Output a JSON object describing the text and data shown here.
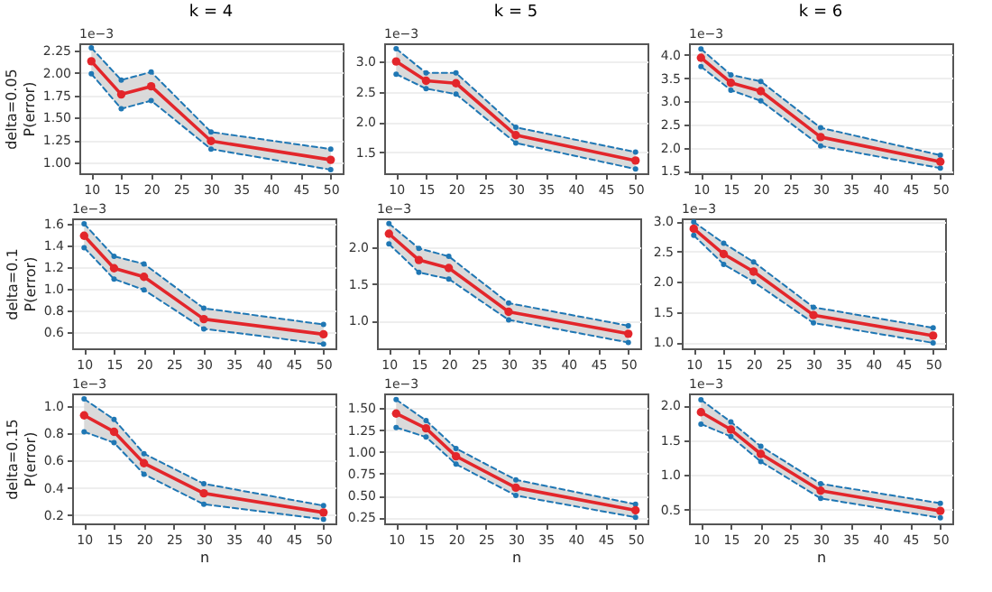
{
  "chart_data": [
    {
      "type": "line",
      "title": "k = 4",
      "ylabel": "delta=0.05\nP(error)",
      "x": [
        10,
        15,
        20,
        30,
        50
      ],
      "xlim": [
        8,
        52
      ],
      "xticks": [
        10,
        15,
        20,
        25,
        30,
        35,
        40,
        45,
        50
      ],
      "ylim": [
        0.88,
        2.33
      ],
      "yticks": [
        {
          "value": 1,
          "label": "1.00"
        },
        1.25,
        {
          "value": 1.5,
          "label": "1.50"
        },
        1.75,
        {
          "value": 2,
          "label": "2.00"
        },
        2.25
      ],
      "grid": "y",
      "marker": "circle",
      "line_style": "solid",
      "annotations": [
        "1e−3"
      ],
      "series": [
        {
          "color": "#e3262b",
          "values": [
            2.13,
            1.76,
            1.85,
            1.24,
            1.03
          ],
          "lower": [
            1.99,
            1.6,
            1.69,
            1.15,
            0.92
          ],
          "upper": [
            2.28,
            1.92,
            2.01,
            1.34,
            1.15
          ]
        },
        {
          "color": "#1f77b4",
          "line_style": "dashed",
          "values": [
            1.99,
            1.6,
            1.69,
            1.15,
            0.92
          ]
        },
        {
          "color": "#1f77b4",
          "line_style": "dashed",
          "values": [
            2.28,
            1.92,
            2.01,
            1.34,
            1.15
          ]
        }
      ]
    },
    {
      "type": "line",
      "title": "k = 5",
      "x": [
        10,
        15,
        20,
        30,
        50
      ],
      "xlim": [
        8,
        52
      ],
      "xticks": [
        10,
        15,
        20,
        25,
        30,
        35,
        40,
        45,
        50
      ],
      "ylim": [
        1.15,
        3.3
      ],
      "yticks": [
        1.5,
        {
          "value": 2,
          "label": "2.0"
        },
        2.5,
        {
          "value": 3,
          "label": "3.0"
        }
      ],
      "grid": "y",
      "marker": "circle",
      "line_style": "solid",
      "annotations": [
        "1e−3"
      ],
      "series": [
        {
          "color": "#e3262b",
          "values": [
            3.0,
            2.68,
            2.64,
            1.78,
            1.36
          ],
          "lower": [
            2.79,
            2.55,
            2.46,
            1.65,
            1.22
          ],
          "upper": [
            3.21,
            2.81,
            2.81,
            1.91,
            1.5
          ]
        },
        {
          "color": "#1f77b4",
          "line_style": "dashed",
          "values": [
            2.79,
            2.55,
            2.46,
            1.65,
            1.22
          ]
        },
        {
          "color": "#1f77b4",
          "line_style": "dashed",
          "values": [
            3.21,
            2.81,
            2.81,
            1.91,
            1.5
          ]
        }
      ]
    },
    {
      "type": "line",
      "title": "k = 6",
      "x": [
        10,
        15,
        20,
        30,
        50
      ],
      "xlim": [
        8,
        52
      ],
      "xticks": [
        10,
        15,
        20,
        25,
        30,
        35,
        40,
        45,
        50
      ],
      "ylim": [
        1.45,
        4.25
      ],
      "yticks": [
        1.5,
        {
          "value": 2,
          "label": "2.0"
        },
        2.5,
        {
          "value": 3,
          "label": "3.0"
        },
        3.5,
        {
          "value": 4,
          "label": "4.0"
        }
      ],
      "grid": "y",
      "marker": "circle",
      "line_style": "solid",
      "annotations": [
        "1e−3"
      ],
      "series": [
        {
          "color": "#e3262b",
          "values": [
            3.94,
            3.4,
            3.22,
            2.23,
            1.7
          ],
          "lower": [
            3.75,
            3.24,
            3.01,
            2.04,
            1.56
          ],
          "upper": [
            4.13,
            3.57,
            3.43,
            2.43,
            1.84
          ]
        },
        {
          "color": "#1f77b4",
          "line_style": "dashed",
          "values": [
            3.75,
            3.24,
            3.01,
            2.04,
            1.56
          ]
        },
        {
          "color": "#1f77b4",
          "line_style": "dashed",
          "values": [
            4.13,
            3.57,
            3.43,
            2.43,
            1.84
          ]
        }
      ]
    },
    {
      "type": "line",
      "ylabel": "delta=0.1\nP(error)",
      "x": [
        10,
        15,
        20,
        30,
        50
      ],
      "xlim": [
        8,
        52
      ],
      "xticks": [
        10,
        15,
        20,
        25,
        30,
        35,
        40,
        45,
        50
      ],
      "ylim": [
        0.45,
        1.65
      ],
      "yticks": [
        0.6,
        0.8,
        {
          "value": 1,
          "label": "1.0"
        },
        1.2,
        1.4,
        1.6
      ],
      "grid": "y",
      "marker": "circle",
      "line_style": "solid",
      "annotations": [
        "1e−3"
      ],
      "series": [
        {
          "color": "#e3262b",
          "values": [
            1.49,
            1.19,
            1.11,
            0.72,
            0.58
          ],
          "lower": [
            1.38,
            1.09,
            0.99,
            0.63,
            0.49
          ],
          "upper": [
            1.6,
            1.3,
            1.23,
            0.82,
            0.67
          ]
        },
        {
          "color": "#1f77b4",
          "line_style": "dashed",
          "values": [
            1.38,
            1.09,
            0.99,
            0.63,
            0.49
          ]
        },
        {
          "color": "#1f77b4",
          "line_style": "dashed",
          "values": [
            1.6,
            1.3,
            1.23,
            0.82,
            0.67
          ]
        }
      ]
    },
    {
      "type": "line",
      "x": [
        10,
        15,
        20,
        30,
        50
      ],
      "xlim": [
        8,
        52
      ],
      "xticks": [
        10,
        15,
        20,
        25,
        30,
        35,
        40,
        45,
        50
      ],
      "ylim": [
        0.62,
        2.4
      ],
      "yticks": [
        {
          "value": 1,
          "label": "1.0"
        },
        1.5,
        {
          "value": 2,
          "label": "2.0"
        }
      ],
      "grid": "y",
      "marker": "circle",
      "line_style": "solid",
      "annotations": [
        "1e−3"
      ],
      "series": [
        {
          "color": "#e3262b",
          "values": [
            2.19,
            1.83,
            1.72,
            1.12,
            0.82
          ],
          "lower": [
            2.05,
            1.66,
            1.57,
            1.01,
            0.7
          ],
          "upper": [
            2.33,
            1.99,
            1.88,
            1.24,
            0.93
          ]
        },
        {
          "color": "#1f77b4",
          "line_style": "dashed",
          "values": [
            2.05,
            1.66,
            1.57,
            1.01,
            0.7
          ]
        },
        {
          "color": "#1f77b4",
          "line_style": "dashed",
          "values": [
            2.33,
            1.99,
            1.88,
            1.24,
            0.93
          ]
        }
      ]
    },
    {
      "type": "line",
      "x": [
        10,
        15,
        20,
        30,
        50
      ],
      "xlim": [
        8,
        52
      ],
      "xticks": [
        10,
        15,
        20,
        25,
        30,
        35,
        40,
        45,
        50
      ],
      "ylim": [
        0.9,
        3.05
      ],
      "yticks": [
        {
          "value": 1,
          "label": "1.0"
        },
        1.5,
        {
          "value": 2,
          "label": "2.0"
        },
        2.5,
        {
          "value": 3,
          "label": "3.0"
        }
      ],
      "grid": "y",
      "marker": "circle",
      "line_style": "solid",
      "annotations": [
        "1e−3"
      ],
      "series": [
        {
          "color": "#e3262b",
          "values": [
            2.88,
            2.46,
            2.17,
            1.45,
            1.11
          ],
          "lower": [
            2.77,
            2.29,
            2.0,
            1.32,
            0.99
          ],
          "upper": [
            2.99,
            2.64,
            2.33,
            1.58,
            1.24
          ]
        },
        {
          "color": "#1f77b4",
          "line_style": "dashed",
          "values": [
            2.77,
            2.29,
            2.0,
            1.32,
            0.99
          ]
        },
        {
          "color": "#1f77b4",
          "line_style": "dashed",
          "values": [
            2.99,
            2.64,
            2.33,
            1.58,
            1.24
          ]
        }
      ]
    },
    {
      "type": "line",
      "xlabel": "n",
      "ylabel": "delta=0.15\nP(error)",
      "x": [
        10,
        15,
        20,
        30,
        50
      ],
      "xlim": [
        8,
        52
      ],
      "xticks": [
        10,
        15,
        20,
        25,
        30,
        35,
        40,
        45,
        50
      ],
      "ylim": [
        0.14,
        1.09
      ],
      "yticks": [
        0.2,
        0.4,
        0.6,
        0.8,
        {
          "value": 1,
          "label": "1.0"
        }
      ],
      "grid": "y",
      "marker": "circle",
      "line_style": "solid",
      "annotations": [
        "1e−3"
      ],
      "series": [
        {
          "color": "#e3262b",
          "values": [
            0.93,
            0.81,
            0.58,
            0.36,
            0.22
          ],
          "lower": [
            0.81,
            0.73,
            0.5,
            0.28,
            0.17
          ],
          "upper": [
            1.05,
            0.9,
            0.65,
            0.43,
            0.27
          ]
        },
        {
          "color": "#1f77b4",
          "line_style": "dashed",
          "values": [
            0.81,
            0.73,
            0.5,
            0.28,
            0.17
          ]
        },
        {
          "color": "#1f77b4",
          "line_style": "dashed",
          "values": [
            1.05,
            0.9,
            0.65,
            0.43,
            0.27
          ]
        }
      ]
    },
    {
      "type": "line",
      "xlabel": "n",
      "x": [
        10,
        15,
        20,
        30,
        50
      ],
      "xlim": [
        8,
        52
      ],
      "xticks": [
        10,
        15,
        20,
        25,
        30,
        35,
        40,
        45,
        50
      ],
      "ylim": [
        0.18,
        1.67
      ],
      "yticks": [
        0.25,
        {
          "value": 0.5,
          "label": "0.50"
        },
        0.75,
        {
          "value": 1,
          "label": "1.00"
        },
        1.25,
        {
          "value": 1.5,
          "label": "1.50"
        }
      ],
      "grid": "y",
      "marker": "circle",
      "line_style": "solid",
      "annotations": [
        "1e−3"
      ],
      "series": [
        {
          "color": "#e3262b",
          "values": [
            1.44,
            1.27,
            0.95,
            0.59,
            0.33
          ],
          "lower": [
            1.28,
            1.17,
            0.86,
            0.5,
            0.25
          ],
          "upper": [
            1.6,
            1.36,
            1.04,
            0.68,
            0.4
          ]
        },
        {
          "color": "#1f77b4",
          "line_style": "dashed",
          "values": [
            1.28,
            1.17,
            0.86,
            0.5,
            0.25
          ]
        },
        {
          "color": "#1f77b4",
          "line_style": "dashed",
          "values": [
            1.6,
            1.36,
            1.04,
            0.68,
            0.4
          ]
        }
      ]
    },
    {
      "type": "line",
      "xlabel": "n",
      "x": [
        10,
        15,
        20,
        30,
        50
      ],
      "xlim": [
        8,
        52
      ],
      "xticks": [
        10,
        15,
        20,
        25,
        30,
        35,
        40,
        45,
        50
      ],
      "ylim": [
        0.3,
        2.17
      ],
      "yticks": [
        0.5,
        {
          "value": 1,
          "label": "1.0"
        },
        1.5,
        {
          "value": 2,
          "label": "2.0"
        }
      ],
      "grid": "y",
      "marker": "circle",
      "line_style": "solid",
      "annotations": [
        "1e−3"
      ],
      "series": [
        {
          "color": "#e3262b",
          "values": [
            1.9,
            1.65,
            1.3,
            0.77,
            0.48
          ],
          "lower": [
            1.73,
            1.55,
            1.19,
            0.66,
            0.38
          ],
          "upper": [
            2.08,
            1.76,
            1.41,
            0.87,
            0.59
          ]
        },
        {
          "color": "#1f77b4",
          "line_style": "dashed",
          "values": [
            1.73,
            1.55,
            1.19,
            0.66,
            0.38
          ]
        },
        {
          "color": "#1f77b4",
          "line_style": "dashed",
          "values": [
            2.08,
            1.76,
            1.41,
            0.87,
            0.59
          ]
        }
      ]
    }
  ]
}
